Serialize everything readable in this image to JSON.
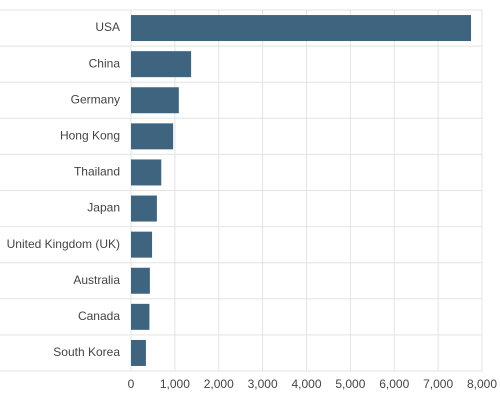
{
  "chart_data": {
    "type": "bar",
    "orientation": "horizontal",
    "categories": [
      "USA",
      "China",
      "Germany",
      "Hong Kong",
      "Thailand",
      "Japan",
      "United Kingdom (UK)",
      "Australia",
      "Canada",
      "South Korea"
    ],
    "values": [
      7750,
      1370,
      1090,
      960,
      690,
      590,
      480,
      430,
      420,
      340
    ],
    "color": "#3e6480",
    "xlim": [
      0,
      8000
    ],
    "xticks": [
      0,
      {
        "value": 1000,
        "label": "1,000"
      },
      {
        "value": 2000,
        "label": "2,000"
      },
      {
        "value": 3000,
        "label": "3,000"
      },
      {
        "value": 4000,
        "label": "4,000"
      },
      {
        "value": 5000,
        "label": "5,000"
      },
      {
        "value": 6000,
        "label": "6,000"
      },
      {
        "value": 7000,
        "label": "7,000"
      },
      {
        "value": 8000,
        "label": "8,000"
      }
    ],
    "grid": true
  }
}
